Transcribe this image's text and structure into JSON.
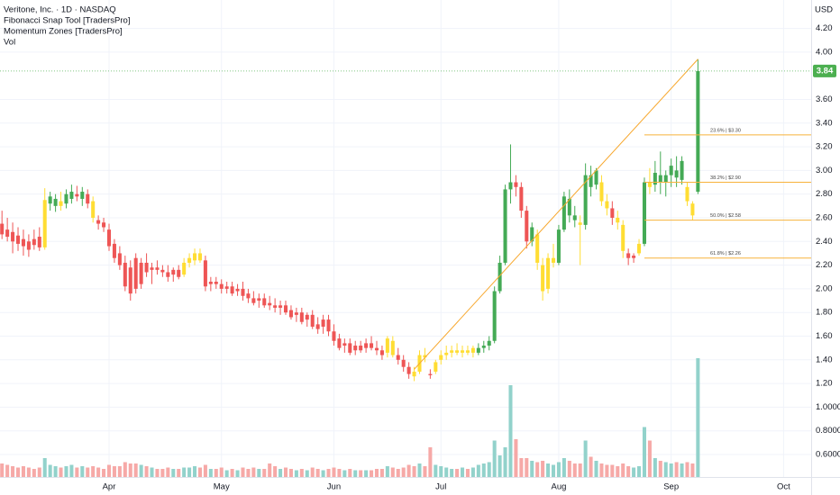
{
  "chart_data": {
    "type": "candlestick",
    "title": "Veritone, Inc. · 1D · NASDAQ",
    "indicators": [
      "Fibonacci Snap Tool [TradersPro]",
      "Momentum Zones [TradersPro]",
      "Vol"
    ],
    "currency": "USD",
    "xlim": [
      -0.37,
      151.15
    ],
    "xticks": [
      {
        "value": 20,
        "label": "Apr"
      },
      {
        "value": 41,
        "label": "May"
      },
      {
        "value": 62,
        "label": "Jun"
      },
      {
        "value": 82,
        "label": "Jul"
      },
      {
        "value": 104,
        "label": "Aug"
      },
      {
        "value": 125,
        "label": "Sep"
      },
      {
        "value": 146,
        "label": "Oct"
      }
    ],
    "ylim": [
      0.41,
      4.44
    ],
    "yticks": [
      {
        "value": 4.2,
        "label": "4.20"
      },
      {
        "value": 4.0,
        "label": "4.00"
      },
      {
        "value": 3.6,
        "label": "3.60"
      },
      {
        "value": 3.4,
        "label": "3.40"
      },
      {
        "value": 3.2,
        "label": "3.20"
      },
      {
        "value": 3.0,
        "label": "3.00"
      },
      {
        "value": 2.8,
        "label": "2.80"
      },
      {
        "value": 2.6,
        "label": "2.60"
      },
      {
        "value": 2.4,
        "label": "2.40"
      },
      {
        "value": 2.2,
        "label": "2.20"
      },
      {
        "value": 2.0,
        "label": "2.00"
      },
      {
        "value": 1.8,
        "label": "1.80"
      },
      {
        "value": 1.6,
        "label": "1.60"
      },
      {
        "value": 1.4,
        "label": "1.40"
      },
      {
        "value": 1.2,
        "label": "1.20"
      },
      {
        "value": 1.0,
        "label": "1.0000"
      },
      {
        "value": 0.8,
        "label": "0.8000"
      },
      {
        "value": 0.6,
        "label": "0.6000"
      }
    ],
    "y2lim": [
      0,
      10
    ],
    "grid": true,
    "open": [
      2.55,
      2.5,
      2.48,
      2.45,
      2.42,
      2.4,
      2.42,
      2.44,
      2.35,
      2.72,
      2.7,
      2.74,
      2.72,
      2.76,
      2.8,
      2.76,
      2.8,
      2.74,
      2.58,
      2.56,
      2.5,
      2.38,
      2.3,
      2.22,
      2.18,
      2.26,
      2.04,
      2.22,
      2.16,
      2.18,
      2.16,
      2.14,
      2.12,
      2.16,
      2.12,
      2.22,
      2.24,
      2.3,
      2.24,
      2.04,
      2.06,
      2.04,
      2.0,
      2.02,
      1.98,
      2.0,
      1.96,
      1.92,
      1.9,
      1.92,
      1.88,
      1.86,
      1.84,
      1.86,
      1.82,
      1.78,
      1.8,
      1.74,
      1.78,
      1.7,
      1.68,
      1.74,
      1.64,
      1.58,
      1.52,
      1.54,
      1.48,
      1.52,
      1.5,
      1.54,
      1.5,
      1.48,
      1.46,
      1.56,
      1.44,
      1.4,
      1.34,
      1.3,
      1.3,
      1.44,
      1.28,
      1.3,
      1.4,
      1.44,
      1.46,
      1.48,
      1.46,
      1.48,
      1.46,
      1.46,
      1.5,
      1.52,
      1.56,
      1.98,
      2.22,
      2.84,
      2.9,
      2.86,
      2.66,
      2.4,
      2.46,
      2.2,
      2.0,
      2.22,
      2.22,
      2.5,
      2.76,
      2.62,
      2.56,
      2.54,
      2.96,
      2.88,
      2.9,
      2.74,
      2.68,
      2.6,
      2.54,
      2.3,
      2.26,
      2.3,
      2.38,
      2.9,
      2.88,
      2.96,
      2.9,
      2.96,
      3.0,
      2.92,
      2.86,
      2.72,
      2.82
    ],
    "high": [
      2.66,
      2.6,
      2.56,
      2.52,
      2.5,
      2.46,
      2.5,
      2.52,
      2.85,
      2.82,
      2.8,
      2.82,
      2.84,
      2.88,
      2.87,
      2.86,
      2.84,
      2.78,
      2.62,
      2.6,
      2.55,
      2.42,
      2.36,
      2.28,
      2.24,
      2.3,
      2.26,
      2.3,
      2.22,
      2.24,
      2.2,
      2.2,
      2.18,
      2.2,
      2.26,
      2.3,
      2.34,
      2.34,
      2.28,
      2.1,
      2.1,
      2.08,
      2.06,
      2.06,
      2.04,
      2.06,
      2.0,
      1.98,
      1.96,
      1.96,
      1.94,
      1.92,
      1.9,
      1.9,
      1.86,
      1.84,
      1.84,
      1.8,
      1.82,
      1.76,
      1.78,
      1.78,
      1.7,
      1.62,
      1.58,
      1.58,
      1.56,
      1.56,
      1.58,
      1.6,
      1.56,
      1.52,
      1.6,
      1.6,
      1.5,
      1.44,
      1.38,
      1.34,
      1.48,
      1.5,
      1.32,
      1.4,
      1.48,
      1.52,
      1.52,
      1.54,
      1.52,
      1.52,
      1.52,
      1.54,
      1.56,
      1.6,
      2.02,
      2.28,
      2.88,
      3.22,
      2.96,
      2.9,
      2.7,
      2.56,
      2.5,
      2.26,
      2.3,
      2.38,
      2.54,
      2.82,
      2.84,
      2.7,
      2.62,
      3.06,
      3.04,
      3.02,
      2.96,
      2.8,
      2.74,
      2.66,
      2.58,
      2.34,
      2.3,
      2.42,
      2.94,
      3.02,
      3.08,
      3.16,
      3.0,
      3.1,
      3.12,
      3.12,
      2.9,
      2.74,
      3.94
    ],
    "low": [
      2.42,
      2.4,
      2.3,
      2.32,
      2.28,
      2.27,
      2.33,
      2.32,
      2.33,
      2.66,
      2.65,
      2.66,
      2.68,
      2.72,
      2.74,
      2.7,
      2.68,
      2.56,
      2.5,
      2.48,
      2.32,
      2.22,
      2.16,
      1.98,
      1.9,
      1.96,
      2.0,
      2.1,
      2.04,
      2.12,
      2.1,
      2.06,
      2.06,
      2.08,
      2.1,
      2.18,
      2.2,
      2.22,
      1.98,
      1.98,
      2.0,
      1.96,
      1.96,
      1.94,
      1.94,
      1.9,
      1.88,
      1.86,
      1.84,
      1.84,
      1.82,
      1.8,
      1.78,
      1.78,
      1.74,
      1.72,
      1.7,
      1.68,
      1.66,
      1.62,
      1.62,
      1.6,
      1.52,
      1.48,
      1.46,
      1.44,
      1.44,
      1.46,
      1.46,
      1.48,
      1.44,
      1.4,
      1.42,
      1.42,
      1.36,
      1.3,
      1.24,
      1.22,
      1.28,
      1.38,
      1.24,
      1.28,
      1.36,
      1.4,
      1.42,
      1.44,
      1.42,
      1.44,
      1.42,
      1.44,
      1.46,
      1.48,
      1.54,
      1.96,
      2.2,
      2.72,
      2.78,
      2.6,
      2.34,
      2.36,
      2.16,
      1.9,
      1.96,
      2.18,
      2.2,
      2.48,
      2.56,
      2.52,
      2.2,
      2.5,
      2.78,
      2.84,
      2.7,
      2.62,
      2.54,
      2.5,
      2.26,
      2.2,
      2.22,
      2.28,
      2.36,
      2.8,
      2.82,
      2.8,
      2.78,
      2.86,
      2.86,
      2.88,
      2.7,
      2.58,
      2.8
    ],
    "close": [
      2.46,
      2.44,
      2.4,
      2.38,
      2.36,
      2.33,
      2.37,
      2.35,
      2.75,
      2.78,
      2.76,
      2.7,
      2.8,
      2.82,
      2.78,
      2.82,
      2.72,
      2.6,
      2.55,
      2.52,
      2.36,
      2.26,
      2.2,
      2.02,
      1.96,
      2.0,
      2.22,
      2.14,
      2.18,
      2.16,
      2.14,
      2.1,
      2.16,
      2.1,
      2.22,
      2.26,
      2.3,
      2.24,
      2.02,
      2.06,
      2.04,
      2.0,
      2.02,
      1.96,
      2.0,
      1.94,
      1.92,
      1.88,
      1.92,
      1.86,
      1.86,
      1.84,
      1.86,
      1.8,
      1.76,
      1.8,
      1.72,
      1.78,
      1.68,
      1.66,
      1.74,
      1.64,
      1.56,
      1.5,
      1.54,
      1.46,
      1.52,
      1.48,
      1.54,
      1.5,
      1.48,
      1.44,
      1.58,
      1.44,
      1.4,
      1.34,
      1.28,
      1.26,
      1.44,
      1.42,
      1.27,
      1.38,
      1.44,
      1.46,
      1.48,
      1.46,
      1.48,
      1.46,
      1.5,
      1.5,
      1.52,
      1.56,
      1.98,
      2.22,
      2.84,
      2.9,
      2.86,
      2.66,
      2.4,
      2.52,
      2.22,
      1.98,
      2.26,
      2.26,
      2.5,
      2.78,
      2.62,
      2.58,
      2.54,
      2.96,
      2.86,
      3.0,
      2.74,
      2.68,
      2.6,
      2.56,
      2.32,
      2.26,
      2.28,
      2.38,
      2.9,
      2.86,
      2.98,
      2.9,
      2.96,
      3.04,
      2.94,
      3.08,
      2.74,
      2.62,
      3.84
    ],
    "volume": [
      1.0,
      0.9,
      0.8,
      0.7,
      0.8,
      0.7,
      0.6,
      0.7,
      1.4,
      0.9,
      0.8,
      0.7,
      0.8,
      0.9,
      0.7,
      0.8,
      0.7,
      0.8,
      0.7,
      0.6,
      0.9,
      0.8,
      0.8,
      1.1,
      1.0,
      1.0,
      0.9,
      0.8,
      0.7,
      0.6,
      0.6,
      0.7,
      0.6,
      0.6,
      0.7,
      0.7,
      0.8,
      0.7,
      0.9,
      0.6,
      0.6,
      0.7,
      0.5,
      0.6,
      0.5,
      0.7,
      0.6,
      0.7,
      0.6,
      0.6,
      1.0,
      0.8,
      0.6,
      0.7,
      0.6,
      0.5,
      0.6,
      0.5,
      0.7,
      0.6,
      0.5,
      0.6,
      0.7,
      0.6,
      0.5,
      0.6,
      0.5,
      0.5,
      0.5,
      0.5,
      0.6,
      0.6,
      0.8,
      0.7,
      0.6,
      0.7,
      0.9,
      0.8,
      1.0,
      0.8,
      2.2,
      0.9,
      0.8,
      0.7,
      0.6,
      0.6,
      0.7,
      0.6,
      0.7,
      0.9,
      1.0,
      1.1,
      2.7,
      1.6,
      2.2,
      6.8,
      2.8,
      1.4,
      1.4,
      1.2,
      1.1,
      1.2,
      1.0,
      0.9,
      1.1,
      1.4,
      1.2,
      1.0,
      1.0,
      2.7,
      1.5,
      1.2,
      1.0,
      0.9,
      0.9,
      0.8,
      1.0,
      0.8,
      0.7,
      0.8,
      3.7,
      2.7,
      1.4,
      1.2,
      1.1,
      1.0,
      1.1,
      1.0,
      1.1,
      1.0,
      8.8
    ],
    "colors": [
      "#e55",
      "#e55",
      "#e55",
      "#e55",
      "#e55",
      "#e55",
      "#e55",
      "#e55",
      "#fd3",
      "#4a5",
      "#4a5",
      "#fd3",
      "#4a5",
      "#4a5",
      "#e55",
      "#4a5",
      "#e55",
      "#fd3",
      "#e55",
      "#e55",
      "#e55",
      "#e55",
      "#e55",
      "#e55",
      "#e55",
      "#e55",
      "#e55",
      "#e55",
      "#e55",
      "#e55",
      "#e55",
      "#e55",
      "#e55",
      "#e55",
      "#fd3",
      "#fd3",
      "#fd3",
      "#fd3",
      "#e55",
      "#e55",
      "#e55",
      "#e55",
      "#e55",
      "#e55",
      "#e55",
      "#e55",
      "#e55",
      "#e55",
      "#e55",
      "#e55",
      "#e55",
      "#e55",
      "#e55",
      "#e55",
      "#e55",
      "#e55",
      "#e55",
      "#e55",
      "#e55",
      "#e55",
      "#e55",
      "#e55",
      "#e55",
      "#e55",
      "#e55",
      "#e55",
      "#e55",
      "#e55",
      "#e55",
      "#e55",
      "#e55",
      "#e55",
      "#fd3",
      "#fd3",
      "#e55",
      "#e55",
      "#e55",
      "#fd3",
      "#fd3",
      "#fd3",
      "#e55",
      "#fd3",
      "#fd3",
      "#fd3",
      "#fd3",
      "#fd3",
      "#fd3",
      "#fd3",
      "#fd3",
      "#4a5",
      "#4a5",
      "#4a5",
      "#4a5",
      "#4a5",
      "#4a5",
      "#4a5",
      "#e55",
      "#e55",
      "#e55",
      "#4a5",
      "#fd3",
      "#fd3",
      "#fd3",
      "#fd3",
      "#4a5",
      "#4a5",
      "#4a5",
      "#4a5",
      "#fd3",
      "#4a5",
      "#4a5",
      "#4a5",
      "#fd3",
      "#fd3",
      "#e55",
      "#fd3",
      "#fd3",
      "#e55",
      "#e55",
      "#fd3",
      "#4a5",
      "#fd3",
      "#4a5",
      "#4a5",
      "#4a5",
      "#4a5",
      "#4a5",
      "#4a5",
      "#fd3",
      "#fd3",
      "#4a5"
    ],
    "volume_colors": {
      "up": "#92d2cb",
      "down": "#f6a9a7"
    },
    "last_price_color": "#4caf50",
    "trendline": {
      "x": [
        77,
        130
      ],
      "y": [
        1.32,
        3.94
      ],
      "color": "#f7a72c"
    },
    "fib": {
      "x_start": 120,
      "color": "#f7b23b",
      "levels": [
        {
          "label": "23.6% | $3.30",
          "value": 3.3
        },
        {
          "label": "38.2% | $2.90",
          "value": 2.9
        },
        {
          "label": "50.0% | $2.58",
          "value": 2.58
        },
        {
          "label": "61.8% | $2.26",
          "value": 2.26
        }
      ]
    }
  }
}
